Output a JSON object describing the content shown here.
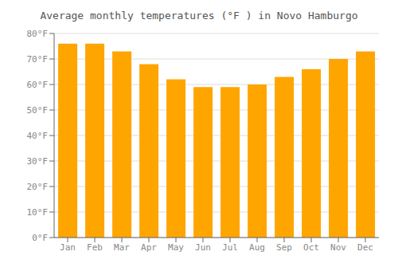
{
  "chart_data": {
    "type": "bar",
    "title": "Average monthly temperatures (°F ) in Novo Hamburgo",
    "categories": [
      "Jan",
      "Feb",
      "Mar",
      "Apr",
      "May",
      "Jun",
      "Jul",
      "Aug",
      "Sep",
      "Oct",
      "Nov",
      "Dec"
    ],
    "values": [
      76,
      76,
      73,
      68,
      62,
      59,
      59,
      60,
      63,
      66,
      70,
      73
    ],
    "color": "#FFA500",
    "ylim": [
      0,
      80
    ],
    "yticks": [
      {
        "value": 0,
        "label": "0°F"
      },
      {
        "value": 10,
        "label": "10°F"
      },
      {
        "value": 20,
        "label": "20°F"
      },
      {
        "value": 30,
        "label": "30°F"
      },
      {
        "value": 40,
        "label": "40°F"
      },
      {
        "value": 50,
        "label": "50°F"
      },
      {
        "value": 60,
        "label": "60°F"
      },
      {
        "value": 70,
        "label": "70°F"
      },
      {
        "value": 80,
        "label": "80°F"
      }
    ],
    "grid": true
  }
}
